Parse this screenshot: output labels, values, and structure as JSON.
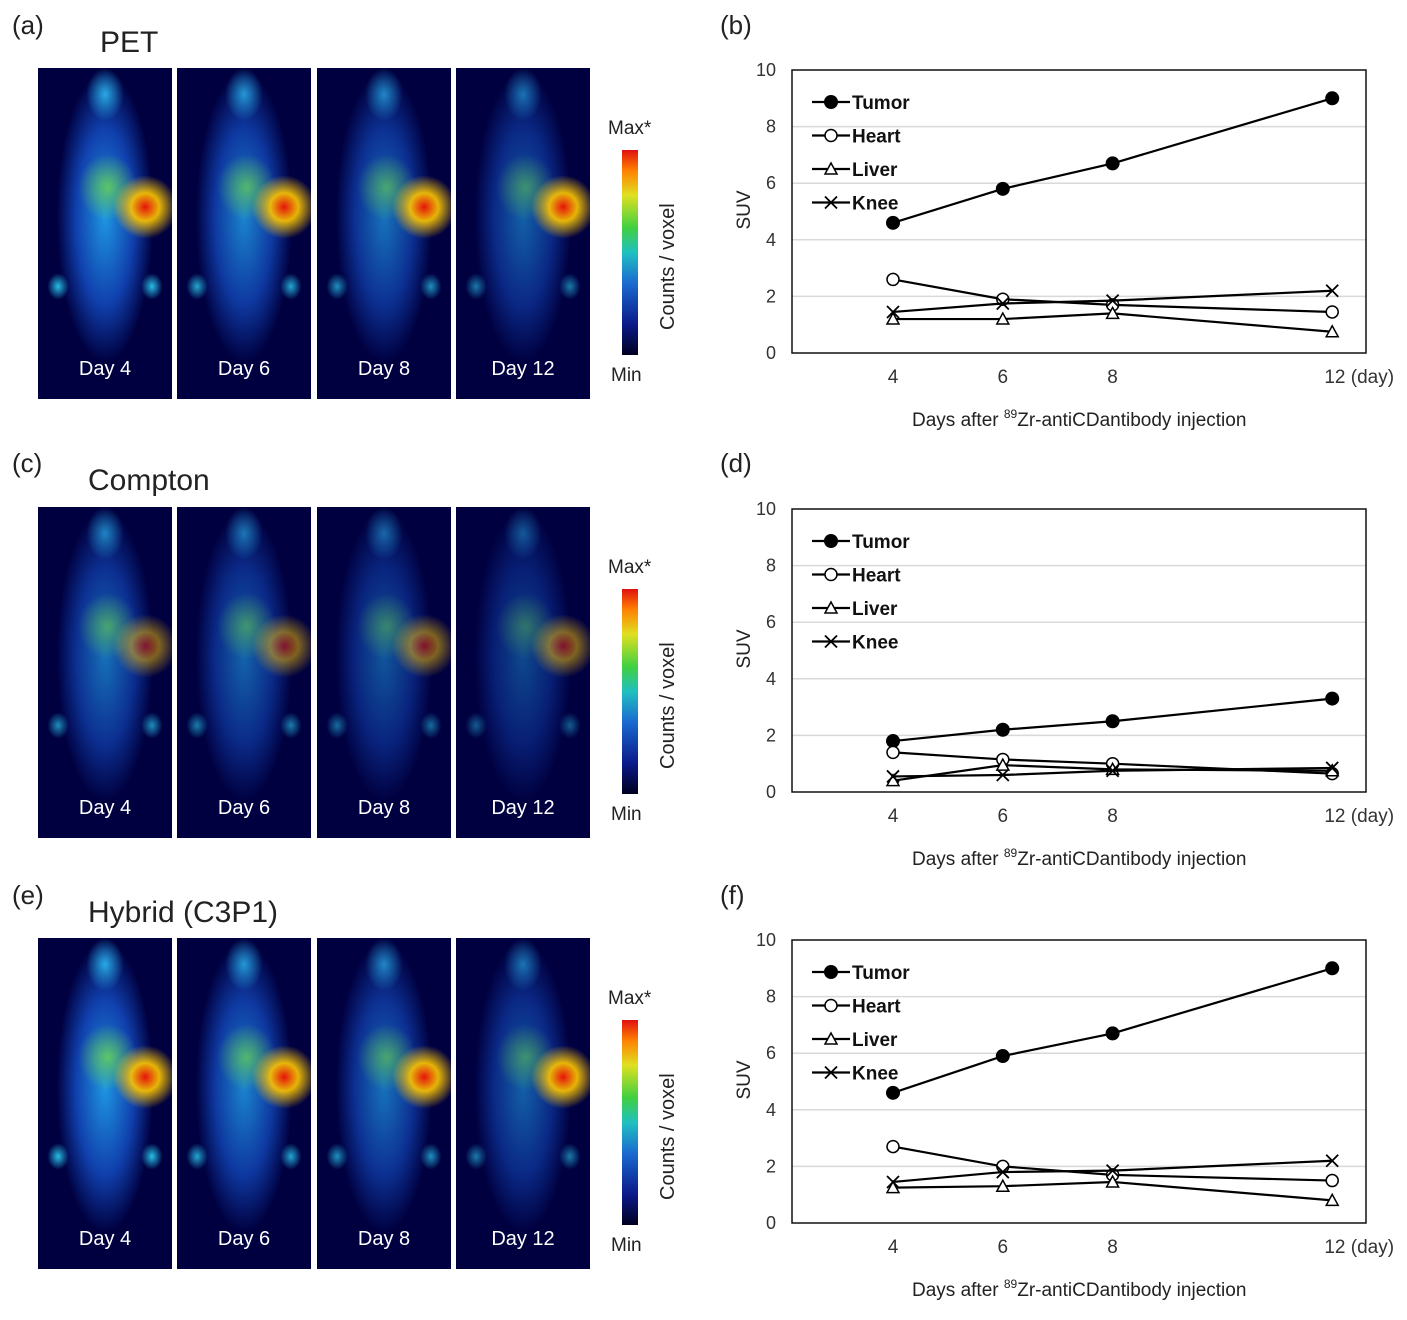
{
  "rows": [
    {
      "panel": "(a)",
      "title": "PET",
      "chart_panel": "(b)",
      "intensity": 1.0,
      "hot": 1.0
    },
    {
      "panel": "(c)",
      "title": "Compton",
      "chart_panel": "(d)",
      "intensity": 0.75,
      "hot": 0.55
    },
    {
      "panel": "(e)",
      "title": "Hybrid (C3P1)",
      "chart_panel": "(f)",
      "intensity": 1.0,
      "hot": 1.0
    }
  ],
  "days": [
    "Day 4",
    "Day 6",
    "Day 8",
    "Day 12"
  ],
  "colorbar": {
    "max": "Max*",
    "min": "Min",
    "label": "Counts / voxel"
  },
  "chart_data": [
    {
      "type": "line",
      "panel": "(b)",
      "ylabel": "SUV",
      "xlabel_pre": "Days after ",
      "xlabel_sup": "89",
      "xlabel_post": "Zr-antiCDantibody injection",
      "x": [
        4,
        6,
        8,
        12
      ],
      "xticks": [
        "4",
        "6",
        "8",
        "12 (day)"
      ],
      "ylim": [
        0,
        10
      ],
      "yticks": [
        "0",
        "2",
        "4",
        "6",
        "8",
        "10"
      ],
      "grid": true,
      "legend": "top-left",
      "series": [
        {
          "name": "Tumor",
          "marker": "filled-circle",
          "values": [
            4.6,
            5.8,
            6.7,
            9.0
          ]
        },
        {
          "name": "Heart",
          "marker": "open-circle",
          "values": [
            2.6,
            1.9,
            1.7,
            1.45
          ]
        },
        {
          "name": "Liver",
          "marker": "triangle",
          "values": [
            1.2,
            1.2,
            1.4,
            0.75
          ]
        },
        {
          "name": "Knee",
          "marker": "x",
          "values": [
            1.45,
            1.75,
            1.85,
            2.2
          ]
        }
      ]
    },
    {
      "type": "line",
      "panel": "(d)",
      "ylabel": "SUV",
      "xlabel_pre": "Days after ",
      "xlabel_sup": "89",
      "xlabel_post": "Zr-antiCDantibody injection",
      "x": [
        4,
        6,
        8,
        12
      ],
      "xticks": [
        "4",
        "6",
        "8",
        "12 (day)"
      ],
      "ylim": [
        0,
        10
      ],
      "yticks": [
        "0",
        "2",
        "4",
        "6",
        "8",
        "10"
      ],
      "grid": true,
      "legend": "top-left",
      "series": [
        {
          "name": "Tumor",
          "marker": "filled-circle",
          "values": [
            1.8,
            2.2,
            2.5,
            3.3
          ]
        },
        {
          "name": "Heart",
          "marker": "open-circle",
          "values": [
            1.4,
            1.15,
            1.0,
            0.65
          ]
        },
        {
          "name": "Liver",
          "marker": "triangle",
          "values": [
            0.4,
            0.95,
            0.8,
            0.75
          ]
        },
        {
          "name": "Knee",
          "marker": "x",
          "values": [
            0.55,
            0.6,
            0.75,
            0.85
          ]
        }
      ]
    },
    {
      "type": "line",
      "panel": "(f)",
      "ylabel": "SUV",
      "xlabel_pre": "Days after ",
      "xlabel_sup": "89",
      "xlabel_post": "Zr-antiCDantibody injection",
      "x": [
        4,
        6,
        8,
        12
      ],
      "xticks": [
        "4",
        "6",
        "8",
        "12 (day)"
      ],
      "ylim": [
        0,
        10
      ],
      "yticks": [
        "0",
        "2",
        "4",
        "6",
        "8",
        "10"
      ],
      "grid": true,
      "legend": "top-left",
      "series": [
        {
          "name": "Tumor",
          "marker": "filled-circle",
          "values": [
            4.6,
            5.9,
            6.7,
            9.0
          ]
        },
        {
          "name": "Heart",
          "marker": "open-circle",
          "values": [
            2.7,
            2.0,
            1.7,
            1.5
          ]
        },
        {
          "name": "Liver",
          "marker": "triangle",
          "values": [
            1.25,
            1.3,
            1.45,
            0.8
          ]
        },
        {
          "name": "Knee",
          "marker": "x",
          "values": [
            1.45,
            1.8,
            1.85,
            2.2
          ]
        }
      ]
    }
  ]
}
